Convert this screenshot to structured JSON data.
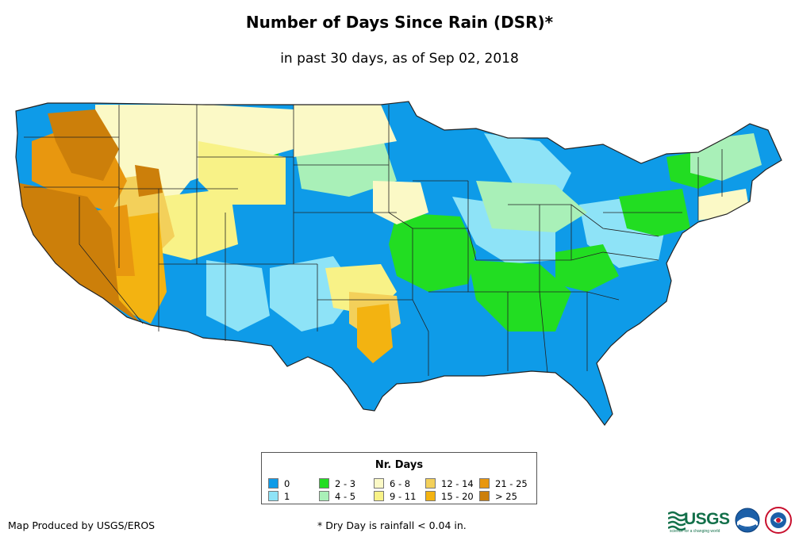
{
  "title": "Number of Days Since Rain (DSR)*",
  "subtitle": "in past 30 days, as of Sep 02, 2018",
  "legend": {
    "title": "Nr. Days",
    "items": [
      {
        "label": "0",
        "color": "#0e9be8"
      },
      {
        "label": "1",
        "color": "#8ee3f7"
      },
      {
        "label": "2 - 3",
        "color": "#22dd22"
      },
      {
        "label": "4 - 5",
        "color": "#a9f0b8"
      },
      {
        "label": "6 - 8",
        "color": "#fbf9c6"
      },
      {
        "label": "9 - 11",
        "color": "#f8f287"
      },
      {
        "label": "12 - 14",
        "color": "#f3d05a"
      },
      {
        "label": "15 - 20",
        "color": "#f3b311"
      },
      {
        "label": "21 - 25",
        "color": "#e8970f"
      },
      {
        "label": "> 25",
        "color": "#cc7f0a"
      }
    ]
  },
  "footer": {
    "producer": "Map Produced by USGS/EROS",
    "note": "* Dry Day is rainfall < 0.04 in."
  },
  "logos": {
    "usgs": "USGS",
    "usgs_tagline": "science for a changing world",
    "noaa_icon": "noaa-logo",
    "nws_icon": "nws-logo"
  }
}
